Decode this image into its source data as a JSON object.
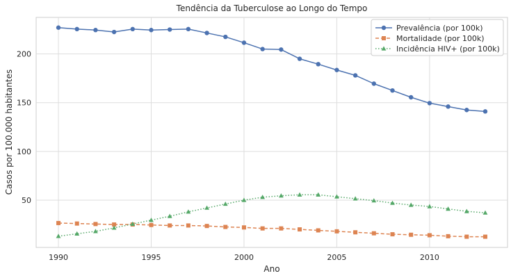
{
  "chart_data": {
    "type": "line",
    "title": "Tendência da Tuberculose ao Longo do Tempo",
    "xlabel": "Ano",
    "ylabel": "Casos por 100.000 habitantes",
    "xlim": [
      1988.8,
      2014.2
    ],
    "ylim": [
      1.5,
      237.5
    ],
    "xticks": [
      1990,
      1995,
      2000,
      2005,
      2010
    ],
    "yticks": [
      50,
      100,
      150,
      200
    ],
    "grid": true,
    "legend_position": "top-right",
    "x": [
      1990,
      1991,
      1992,
      1993,
      1994,
      1995,
      1996,
      1997,
      1998,
      1999,
      2000,
      2001,
      2002,
      2003,
      2004,
      2005,
      2006,
      2007,
      2008,
      2009,
      2010,
      2011,
      2012,
      2013
    ],
    "series": [
      {
        "name": "Prevalência (por 100k)",
        "color": "#4c72b0",
        "marker": "circle",
        "linestyle": "solid",
        "values": [
          227,
          225.5,
          224.5,
          222.5,
          225.5,
          224.5,
          225,
          225.5,
          221.5,
          217.5,
          211.5,
          205,
          204.5,
          195,
          189.5,
          183.5,
          178,
          169.5,
          162.5,
          155.5,
          149.5,
          146,
          142.5,
          141
        ]
      },
      {
        "name": "Mortalidade (por 100k)",
        "color": "#dd8452",
        "marker": "square",
        "linestyle": "dashed",
        "values": [
          26.5,
          26,
          25.5,
          25,
          25,
          24.5,
          24,
          24,
          23.5,
          22.5,
          22,
          21,
          21,
          20,
          19,
          18,
          17,
          16,
          15,
          14.5,
          14,
          13,
          12.5,
          12.5
        ]
      },
      {
        "name": "Incidência HIV+ (por 100k)",
        "color": "#55a868",
        "marker": "triangle",
        "linestyle": "dotted",
        "values": [
          13,
          15.5,
          18,
          21.5,
          25.5,
          29.5,
          33.5,
          38,
          42,
          46,
          50,
          53,
          54.5,
          55.5,
          55.5,
          53.5,
          51.5,
          49.5,
          47,
          45,
          43.5,
          41,
          38.5,
          37
        ]
      }
    ]
  }
}
